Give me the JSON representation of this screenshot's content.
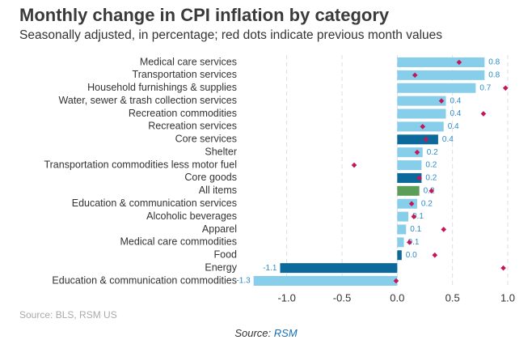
{
  "chart_data": {
    "type": "hbar",
    "title": "Monthly change in CPI inflation by category",
    "subtitle": "Seasonally adjusted, in percentage; red dots indicate previous month values",
    "categories": [
      "Medical care services",
      "Transportation services",
      "Household furnishings & supplies",
      "Water, sewer & trash collection services",
      "Recreation commodities",
      "Recreation services",
      "Core services",
      "Shelter",
      "Transportation commodities less motor fuel",
      "Core goods",
      "All items",
      "Education & communication services",
      "Alcoholic beverages",
      "Apparel",
      "Medical care commodities",
      "Food",
      "Energy",
      "Education & communication commodities"
    ],
    "values": [
      0.79,
      0.79,
      0.71,
      0.44,
      0.44,
      0.42,
      0.37,
      0.23,
      0.22,
      0.22,
      0.2,
      0.18,
      0.1,
      0.08,
      0.06,
      0.04,
      -1.06,
      -1.3
    ],
    "value_labels": [
      "0.8",
      "0.8",
      "0.7",
      "0.4",
      "0.4",
      "0.4",
      "0.4",
      "0.2",
      "0.2",
      "0.2",
      "0.2",
      "0.2",
      "0.1",
      "0.1",
      "0.1",
      "0.0",
      "-1.1",
      "-1.3"
    ],
    "colors": [
      "#87ceeb",
      "#87ceeb",
      "#87ceeb",
      "#87ceeb",
      "#87ceeb",
      "#87ceeb",
      "#0b6a9b",
      "#87ceeb",
      "#87ceeb",
      "#0b6a9b",
      "#5a9e5a",
      "#87ceeb",
      "#87ceeb",
      "#87ceeb",
      "#87ceeb",
      "#0b6a9b",
      "#0b6a9b",
      "#87ceeb"
    ],
    "previous_values": [
      0.56,
      0.16,
      0.98,
      0.4,
      0.78,
      0.23,
      0.26,
      0.18,
      -0.39,
      0.2,
      0.31,
      0.13,
      0.15,
      0.42,
      0.11,
      0.34,
      0.96,
      -0.01
    ],
    "previous_color": "#c2185b",
    "xlim": [
      -1.4,
      1.0
    ],
    "xticks": [
      {
        "value": -1,
        "label": "-1.0"
      },
      -0.5,
      {
        "value": 0,
        "label": "0.0"
      },
      0.5,
      {
        "value": 1,
        "label": "1.0"
      }
    ],
    "grid": true,
    "source": "Source: BLS, RSM US"
  },
  "caption": {
    "prefix": "Source:",
    "link": "RSM"
  }
}
